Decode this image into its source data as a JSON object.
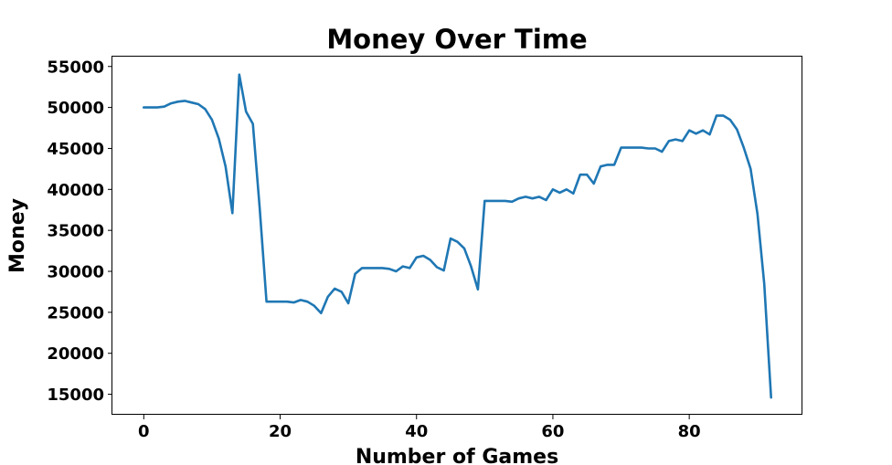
{
  "chart_data": {
    "type": "line",
    "title": "Money Over Time",
    "xlabel": "Number of Games",
    "ylabel": "Money",
    "xlim": [
      -4.6,
      96.6
    ],
    "ylim": [
      12500,
      56200
    ],
    "xticks": [
      0,
      20,
      40,
      60,
      80
    ],
    "yticks": [
      15000,
      20000,
      25000,
      30000,
      35000,
      40000,
      45000,
      50000,
      55000
    ],
    "grid": false,
    "legend": "none",
    "color": "#1f77b4",
    "series": [
      {
        "x": [
          0,
          1,
          2,
          3,
          4,
          5,
          6,
          7,
          8,
          9,
          10,
          11,
          12,
          13,
          14,
          15,
          16,
          17,
          18,
          19,
          20,
          21,
          22,
          23,
          24,
          25,
          26,
          27,
          28,
          29,
          30,
          31,
          32,
          33,
          34,
          35,
          36,
          37,
          38,
          39,
          40,
          41,
          42,
          43,
          44,
          45,
          46,
          47,
          48,
          49,
          50,
          51,
          52,
          53,
          54,
          55,
          56,
          57,
          58,
          59,
          60,
          61,
          62,
          63,
          64,
          65,
          66,
          67,
          68,
          69,
          70,
          71,
          72,
          73,
          74,
          75,
          76,
          77,
          78,
          79,
          80,
          81,
          82,
          83,
          84,
          85,
          86,
          87,
          88,
          89,
          90,
          91,
          92
        ],
        "y": [
          50000,
          50000,
          50000,
          50100,
          50500,
          50700,
          50800,
          50600,
          50400,
          49800,
          48500,
          46200,
          42800,
          37100,
          54000,
          49500,
          48000,
          37800,
          26300,
          26300,
          26300,
          26300,
          26200,
          26500,
          26300,
          25800,
          24900,
          26900,
          27900,
          27500,
          26100,
          29700,
          30400,
          30400,
          30400,
          30400,
          30300,
          30000,
          30600,
          30400,
          31700,
          31900,
          31400,
          30500,
          30100,
          34000,
          33600,
          32800,
          30600,
          27800,
          38600,
          38600,
          38600,
          38600,
          38500,
          38900,
          39100,
          38900,
          39100,
          38700,
          40000,
          39600,
          40000,
          39500,
          41800,
          41800,
          40700,
          42800,
          43000,
          43000,
          45100,
          45100,
          45100,
          45100,
          45000,
          45000,
          44600,
          45900,
          46100,
          45900,
          47200,
          46800,
          47200,
          46700,
          49000,
          49000,
          48500,
          47300,
          45100,
          42500,
          37000,
          28500,
          14600
        ]
      }
    ]
  }
}
